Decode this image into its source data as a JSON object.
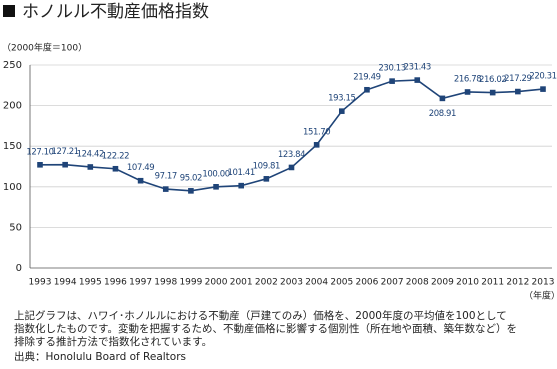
{
  "chart_data": {
    "type": "line",
    "title": "ホノルル不動産価格指数",
    "y_unit_label": "（2000年度＝100）",
    "x_unit_label": "（年度）",
    "categories": [
      "1993",
      "1994",
      "1995",
      "1996",
      "1997",
      "1998",
      "1999",
      "2000",
      "2001",
      "2002",
      "2003",
      "2004",
      "2005",
      "2006",
      "2007",
      "2008",
      "2009",
      "2010",
      "2011",
      "2012",
      "2013"
    ],
    "series": [
      {
        "name": "ホノルル不動産価格指数",
        "color": "#1f4478",
        "values": [
          127.1,
          127.21,
          124.42,
          122.22,
          107.49,
          97.17,
          95.02,
          100,
          101.41,
          109.81,
          123.84,
          151.7,
          193.15,
          219.49,
          230.13,
          231.43,
          208.91,
          216.78,
          216.02,
          217.29,
          220.31
        ],
        "value_labels": [
          "127.10",
          "127.21",
          "124.42",
          "122.22",
          "107.49",
          "97.17",
          "95.02",
          "100.00",
          "101.41",
          "109.81",
          "123.84",
          "151.70",
          "193.15",
          "219.49",
          "230.13",
          "231.43",
          "208.91",
          "216.78",
          "216.02",
          "217.29",
          "220.31"
        ]
      }
    ],
    "ylim": [
      0,
      250
    ],
    "yticks": [
      0,
      50,
      100,
      150,
      200,
      250
    ],
    "grid": true
  },
  "notes": [
    "上記グラフは、ハワイ･ホノルルにおける不動産（戸建てのみ）価格を、2000年度の平均値を100として",
    "指数化したものです。変動を把握するため、不動産価格に影響する個別性（所在地や面積、築年数など）を",
    "排除する推計方法で指数化されています。"
  ],
  "source": "出典：Honolulu Board of Realtors"
}
